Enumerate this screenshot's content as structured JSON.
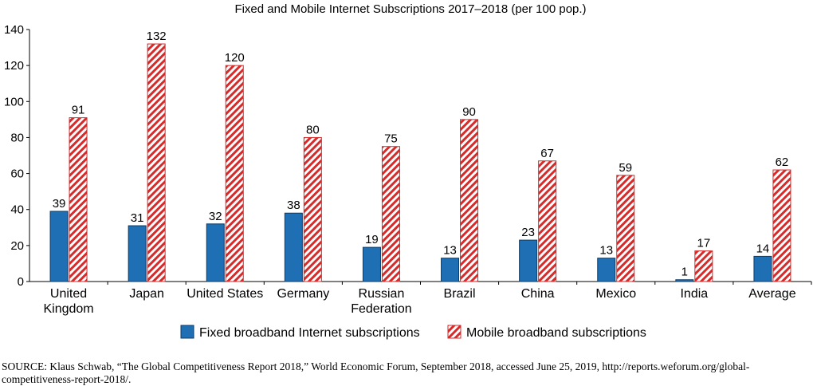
{
  "chart_data": {
    "type": "bar",
    "title": "Fixed and Mobile Internet Subscriptions 2017–2018 (per 100 pop.)",
    "xlabel": "",
    "ylabel": "",
    "categories": [
      [
        "United",
        "Kingdom"
      ],
      [
        "Japan"
      ],
      [
        "United States"
      ],
      [
        "Germany"
      ],
      [
        "Russian",
        "Federation"
      ],
      [
        "Brazil"
      ],
      [
        "China"
      ],
      [
        "Mexico"
      ],
      [
        "India"
      ],
      [
        "Average"
      ]
    ],
    "series": [
      {
        "name": "Fixed broadband Internet subscriptions",
        "values": [
          39,
          31,
          32,
          38,
          19,
          13,
          23,
          13,
          1,
          14
        ],
        "color": "#1f6fb5",
        "pattern": "solid"
      },
      {
        "name": "Mobile broadband subscriptions",
        "values": [
          91,
          132,
          120,
          80,
          75,
          90,
          67,
          59,
          17,
          62
        ],
        "color": "#d52b2b",
        "pattern": "hatched"
      }
    ],
    "ylim": [
      0,
      140
    ],
    "yticks": [
      0,
      20,
      40,
      60,
      80,
      100,
      120,
      140
    ],
    "data_labels": true,
    "grid": false,
    "legend_position": "bottom"
  },
  "source_note": "SOURCE: Klaus Schwab, “The Global Competitiveness Report 2018,” World Economic Forum, September 2018, accessed June 25, 2019, http://reports.weforum.org/global-competitiveness-report-2018/."
}
